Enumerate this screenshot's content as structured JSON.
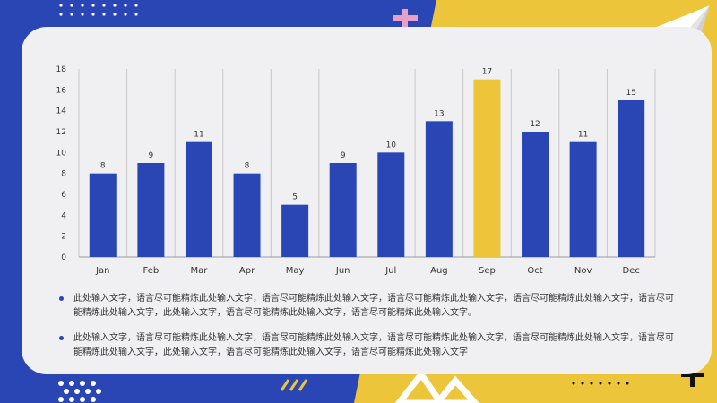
{
  "colors": {
    "blue": "#2A46B5",
    "yellow": "#ECC53A",
    "card": "#F0F0F2",
    "grid": "#C8C8CC",
    "text": "#333333"
  },
  "chart_data": {
    "type": "bar",
    "categories": [
      "Jan",
      "Feb",
      "Mar",
      "Apr",
      "May",
      "Jun",
      "Jul",
      "Aug",
      "Sep",
      "Oct",
      "Nov",
      "Dec"
    ],
    "values": [
      8,
      9,
      11,
      8,
      5,
      9,
      10,
      13,
      17,
      12,
      11,
      15
    ],
    "highlight_index": 8,
    "ylim": [
      0,
      18
    ],
    "yticks": [
      0,
      2,
      4,
      6,
      8,
      10,
      12,
      14,
      16,
      18
    ],
    "grid": true,
    "title": "",
    "xlabel": "",
    "ylabel": ""
  },
  "bullets": [
    "此处输入文字，语言尽可能精炼此处输入文字，语言尽可能精炼此处输入文字，语言尽可能精炼此处输入文字，语言尽可能精炼此处输入文字，语言尽可能精炼此处输入文字，此处输入文字，语言尽可能精炼此处输入文字，语言尽可能精炼此处输入文字。",
    "此处输入文字，语言尽可能精炼此处输入文字，语言尽可能精炼此处输入文字，语言尽可能精炼此处输入文字，语言尽可能精炼此处输入文字，语言尽可能精炼此处输入文字，此处输入文字，语言尽可能精炼此处输入文字，语言尽可能精炼此处输入文字"
  ]
}
